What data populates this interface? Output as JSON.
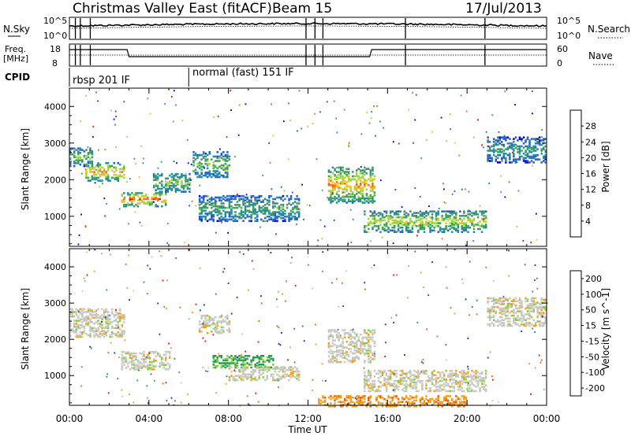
{
  "header": {
    "title": "Christmas Valley East (fitACF)",
    "beam": "Beam 15",
    "date": "17/Jul/2013"
  },
  "top_strip": {
    "nsky_label": "N.Sky",
    "nsky_ticks": [
      "10^5",
      "10^0"
    ],
    "nsearch_label": "N.Search",
    "nsearch_ticks": [
      "10^5",
      "10^0"
    ],
    "freq_label": "Freq.",
    "freq_unit": "[MHz]",
    "freq_ticks": [
      "18",
      "8"
    ],
    "nave_label": "Nave",
    "nave_ticks": [
      "60",
      "0"
    ],
    "cpid_label": "CPID",
    "cpid_segments": [
      {
        "label": "rbsp 201 IF",
        "start_h": 0.0,
        "end_h": 6.0
      },
      {
        "label": "normal (fast) 151 IF",
        "start_h": 6.0,
        "end_h": 24.0
      }
    ]
  },
  "chart_data": [
    {
      "type": "heatmap",
      "name": "power",
      "ylabel": "Slant Range [km]",
      "yticks": [
        "4000",
        "3000",
        "2000",
        "1000"
      ],
      "ylim": [
        180,
        4500
      ],
      "xlim_hours": [
        0,
        24
      ],
      "colorbar_label": "Power [dB]",
      "colorbar_ticks": [
        "28",
        "24",
        "20",
        "16",
        "12",
        "8",
        "4"
      ],
      "colors": [
        "#0000ee",
        "#1f5fd0",
        "#2a8a9a",
        "#3aa25a",
        "#9cd640",
        "#f0c020",
        "#f07010",
        "#e01010"
      ],
      "echo_bands": [
        {
          "t0": 0.0,
          "t1": 1.2,
          "r0": 2400,
          "r1": 2900,
          "p": 16
        },
        {
          "t0": 0.8,
          "t1": 2.8,
          "r0": 2000,
          "r1": 2500,
          "p": 24
        },
        {
          "t0": 2.6,
          "t1": 4.8,
          "r0": 1300,
          "r1": 1700,
          "p": 26
        },
        {
          "t0": 4.2,
          "t1": 6.0,
          "r0": 1700,
          "r1": 2200,
          "p": 18
        },
        {
          "t0": 6.2,
          "t1": 8.0,
          "r0": 2100,
          "r1": 2800,
          "p": 16
        },
        {
          "t0": 6.5,
          "t1": 11.5,
          "r0": 900,
          "r1": 1600,
          "p": 14
        },
        {
          "t0": 13.0,
          "t1": 15.3,
          "r0": 1400,
          "r1": 2400,
          "p": 24
        },
        {
          "t0": 14.8,
          "t1": 21.0,
          "r0": 600,
          "r1": 1200,
          "p": 20
        },
        {
          "t0": 21.0,
          "t1": 24.0,
          "r0": 2500,
          "r1": 3200,
          "p": 12
        }
      ]
    },
    {
      "type": "heatmap",
      "name": "velocity",
      "ylabel": "Slant Range [km]",
      "yticks": [
        "4000",
        "3000",
        "2000",
        "1000"
      ],
      "ylim": [
        180,
        4500
      ],
      "xlim_hours": [
        0,
        24
      ],
      "colorbar_label": "Velocity [m s^-1]",
      "colorbar_ticks": [
        "200",
        "100",
        "50",
        "15",
        "-15",
        "-50",
        "-100",
        "-200"
      ],
      "colors": [
        "#1030c0",
        "#2a6ad0",
        "#2a9a4a",
        "#80d040",
        "#c8c8c0",
        "#f0a020",
        "#f06010",
        "#e01010"
      ],
      "echo_bands": [
        {
          "t0": 0.0,
          "t1": 2.8,
          "r0": 2100,
          "r1": 2900,
          "v": 0
        },
        {
          "t0": 2.6,
          "t1": 5.0,
          "r0": 1200,
          "r1": 1700,
          "v": 0
        },
        {
          "t0": 6.5,
          "t1": 8.0,
          "r0": 2200,
          "r1": 2700,
          "v": 0
        },
        {
          "t0": 7.2,
          "t1": 10.2,
          "r0": 1250,
          "r1": 1600,
          "v": 40
        },
        {
          "t0": 8.0,
          "t1": 11.5,
          "r0": 900,
          "r1": 1300,
          "v": 0
        },
        {
          "t0": 13.0,
          "t1": 15.3,
          "r0": 1400,
          "r1": 2300,
          "v": 0
        },
        {
          "t0": 14.8,
          "t1": 21.0,
          "r0": 600,
          "r1": 1200,
          "v": 0
        },
        {
          "t0": 12.5,
          "t1": 20.0,
          "r0": 180,
          "r1": 500,
          "v": -40
        },
        {
          "t0": 21.0,
          "t1": 24.0,
          "r0": 2400,
          "r1": 3200,
          "v": 0
        }
      ]
    }
  ],
  "xaxis": {
    "label": "Time UT",
    "ticks": [
      "00:00",
      "04:00",
      "08:00",
      "12:00",
      "16:00",
      "20:00",
      "00:00"
    ]
  }
}
